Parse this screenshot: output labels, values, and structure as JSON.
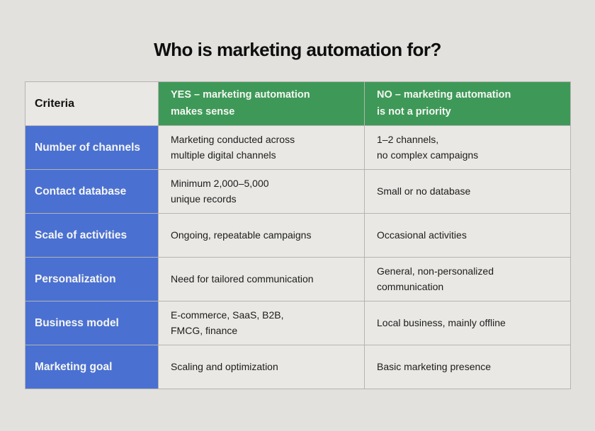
{
  "title": "Who is marketing automation for?",
  "colors": {
    "page_background": "#e2e1dd",
    "cell_background": "#e9e8e4",
    "header_green": "#3e9958",
    "label_blue": "#4a70d2",
    "border_gray": "#b5b4b0",
    "header_text": "#f5f6f2",
    "body_text": "#1c1c1c"
  },
  "table": {
    "header": {
      "criteria": "Criteria",
      "yes": "YES – marketing automation\nmakes sense",
      "no": "NO – marketing automation\nis not a priority"
    },
    "rows": [
      {
        "criteria": "Number of channels",
        "yes": "Marketing conducted across\nmultiple digital channels",
        "no": "1–2 channels,\nno complex campaigns"
      },
      {
        "criteria": "Contact database",
        "yes": "Minimum 2,000–5,000\nunique records",
        "no": "Small or no database"
      },
      {
        "criteria": "Scale of activities",
        "yes": "Ongoing, repeatable campaigns",
        "no": "Occasional activities"
      },
      {
        "criteria": "Personalization",
        "yes": "Need for tailored communication",
        "no": "General, non-personalized\ncommunication"
      },
      {
        "criteria": "Business model",
        "yes": "E-commerce, SaaS, B2B,\nFMCG, finance",
        "no": "Local business, mainly offline"
      },
      {
        "criteria": "Marketing goal",
        "yes": "Scaling and optimization",
        "no": "Basic marketing presence"
      }
    ]
  },
  "chart_data": {
    "type": "table",
    "title": "Who is marketing automation for?",
    "columns": [
      "Criteria",
      "YES – marketing automation makes sense",
      "NO – marketing automation is not a priority"
    ],
    "rows": [
      [
        "Number of channels",
        "Marketing conducted across multiple digital channels",
        "1–2 channels, no complex campaigns"
      ],
      [
        "Contact database",
        "Minimum 2,000–5,000 unique records",
        "Small or no database"
      ],
      [
        "Scale of activities",
        "Ongoing, repeatable campaigns",
        "Occasional activities"
      ],
      [
        "Personalization",
        "Need for tailored communication",
        "General, non-personalized communication"
      ],
      [
        "Business model",
        "E-commerce, SaaS, B2B, FMCG, finance",
        "Local business, mainly offline"
      ],
      [
        "Marketing goal",
        "Scaling and optimization",
        "Basic marketing presence"
      ]
    ],
    "layout": {
      "title_position": "top-center",
      "header_style": "green background, white bold text",
      "label_column_style": "blue background, white bold text"
    }
  }
}
